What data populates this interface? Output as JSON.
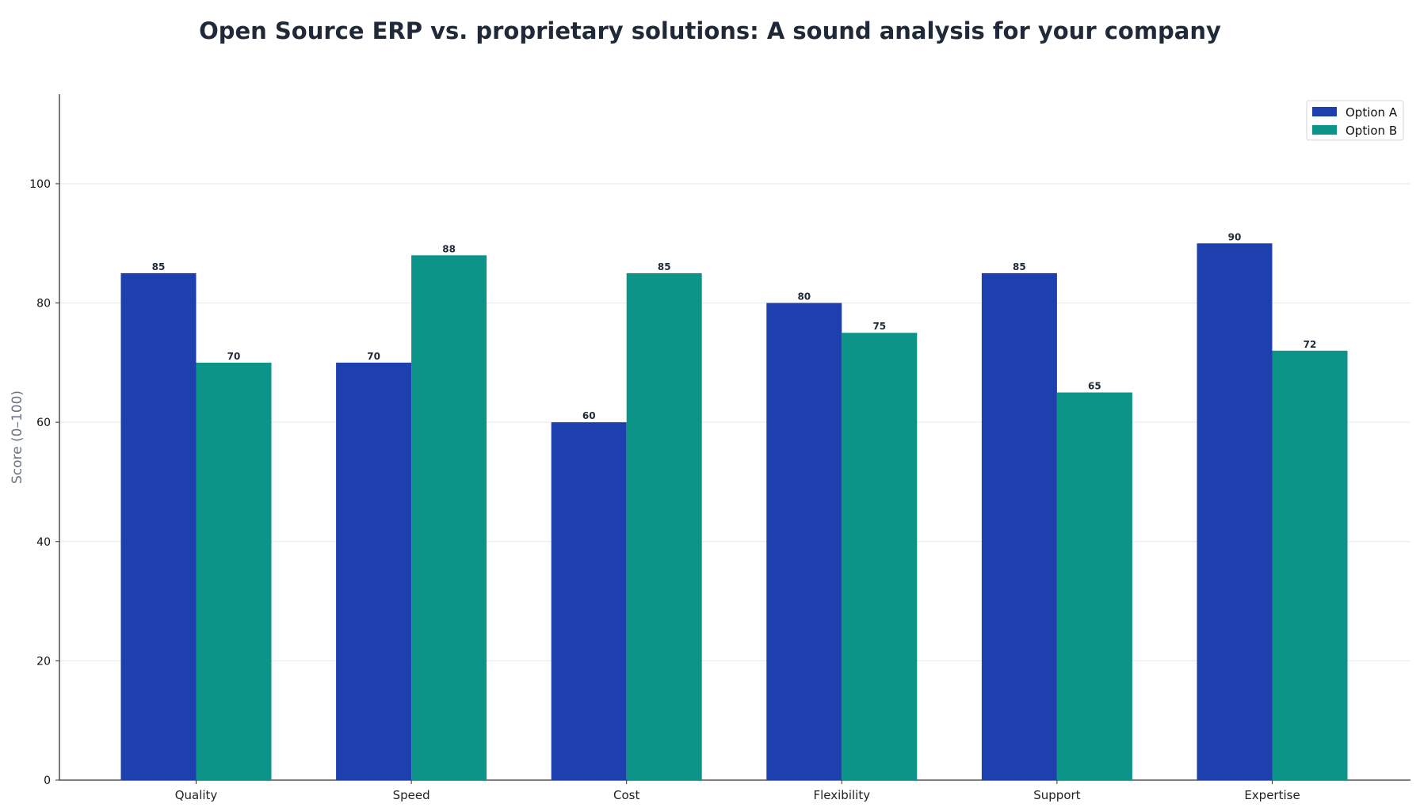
{
  "chart_data": {
    "type": "bar",
    "title": "Open Source ERP vs. proprietary solutions: A sound analysis for your company",
    "xlabel": "",
    "ylabel": "Score (0–100)",
    "ylim": [
      0,
      115
    ],
    "yticks": [
      0,
      20,
      40,
      60,
      80,
      100
    ],
    "grid": true,
    "legend_position": "top-right",
    "categories": [
      "Quality",
      "Speed",
      "Cost",
      "Flexibility",
      "Support",
      "Expertise"
    ],
    "series": [
      {
        "name": "Option A",
        "color": "#1e40af",
        "values": [
          85,
          70,
          60,
          80,
          85,
          90
        ]
      },
      {
        "name": "Option B",
        "color": "#0d9488",
        "values": [
          70,
          88,
          85,
          75,
          65,
          72
        ]
      }
    ]
  }
}
